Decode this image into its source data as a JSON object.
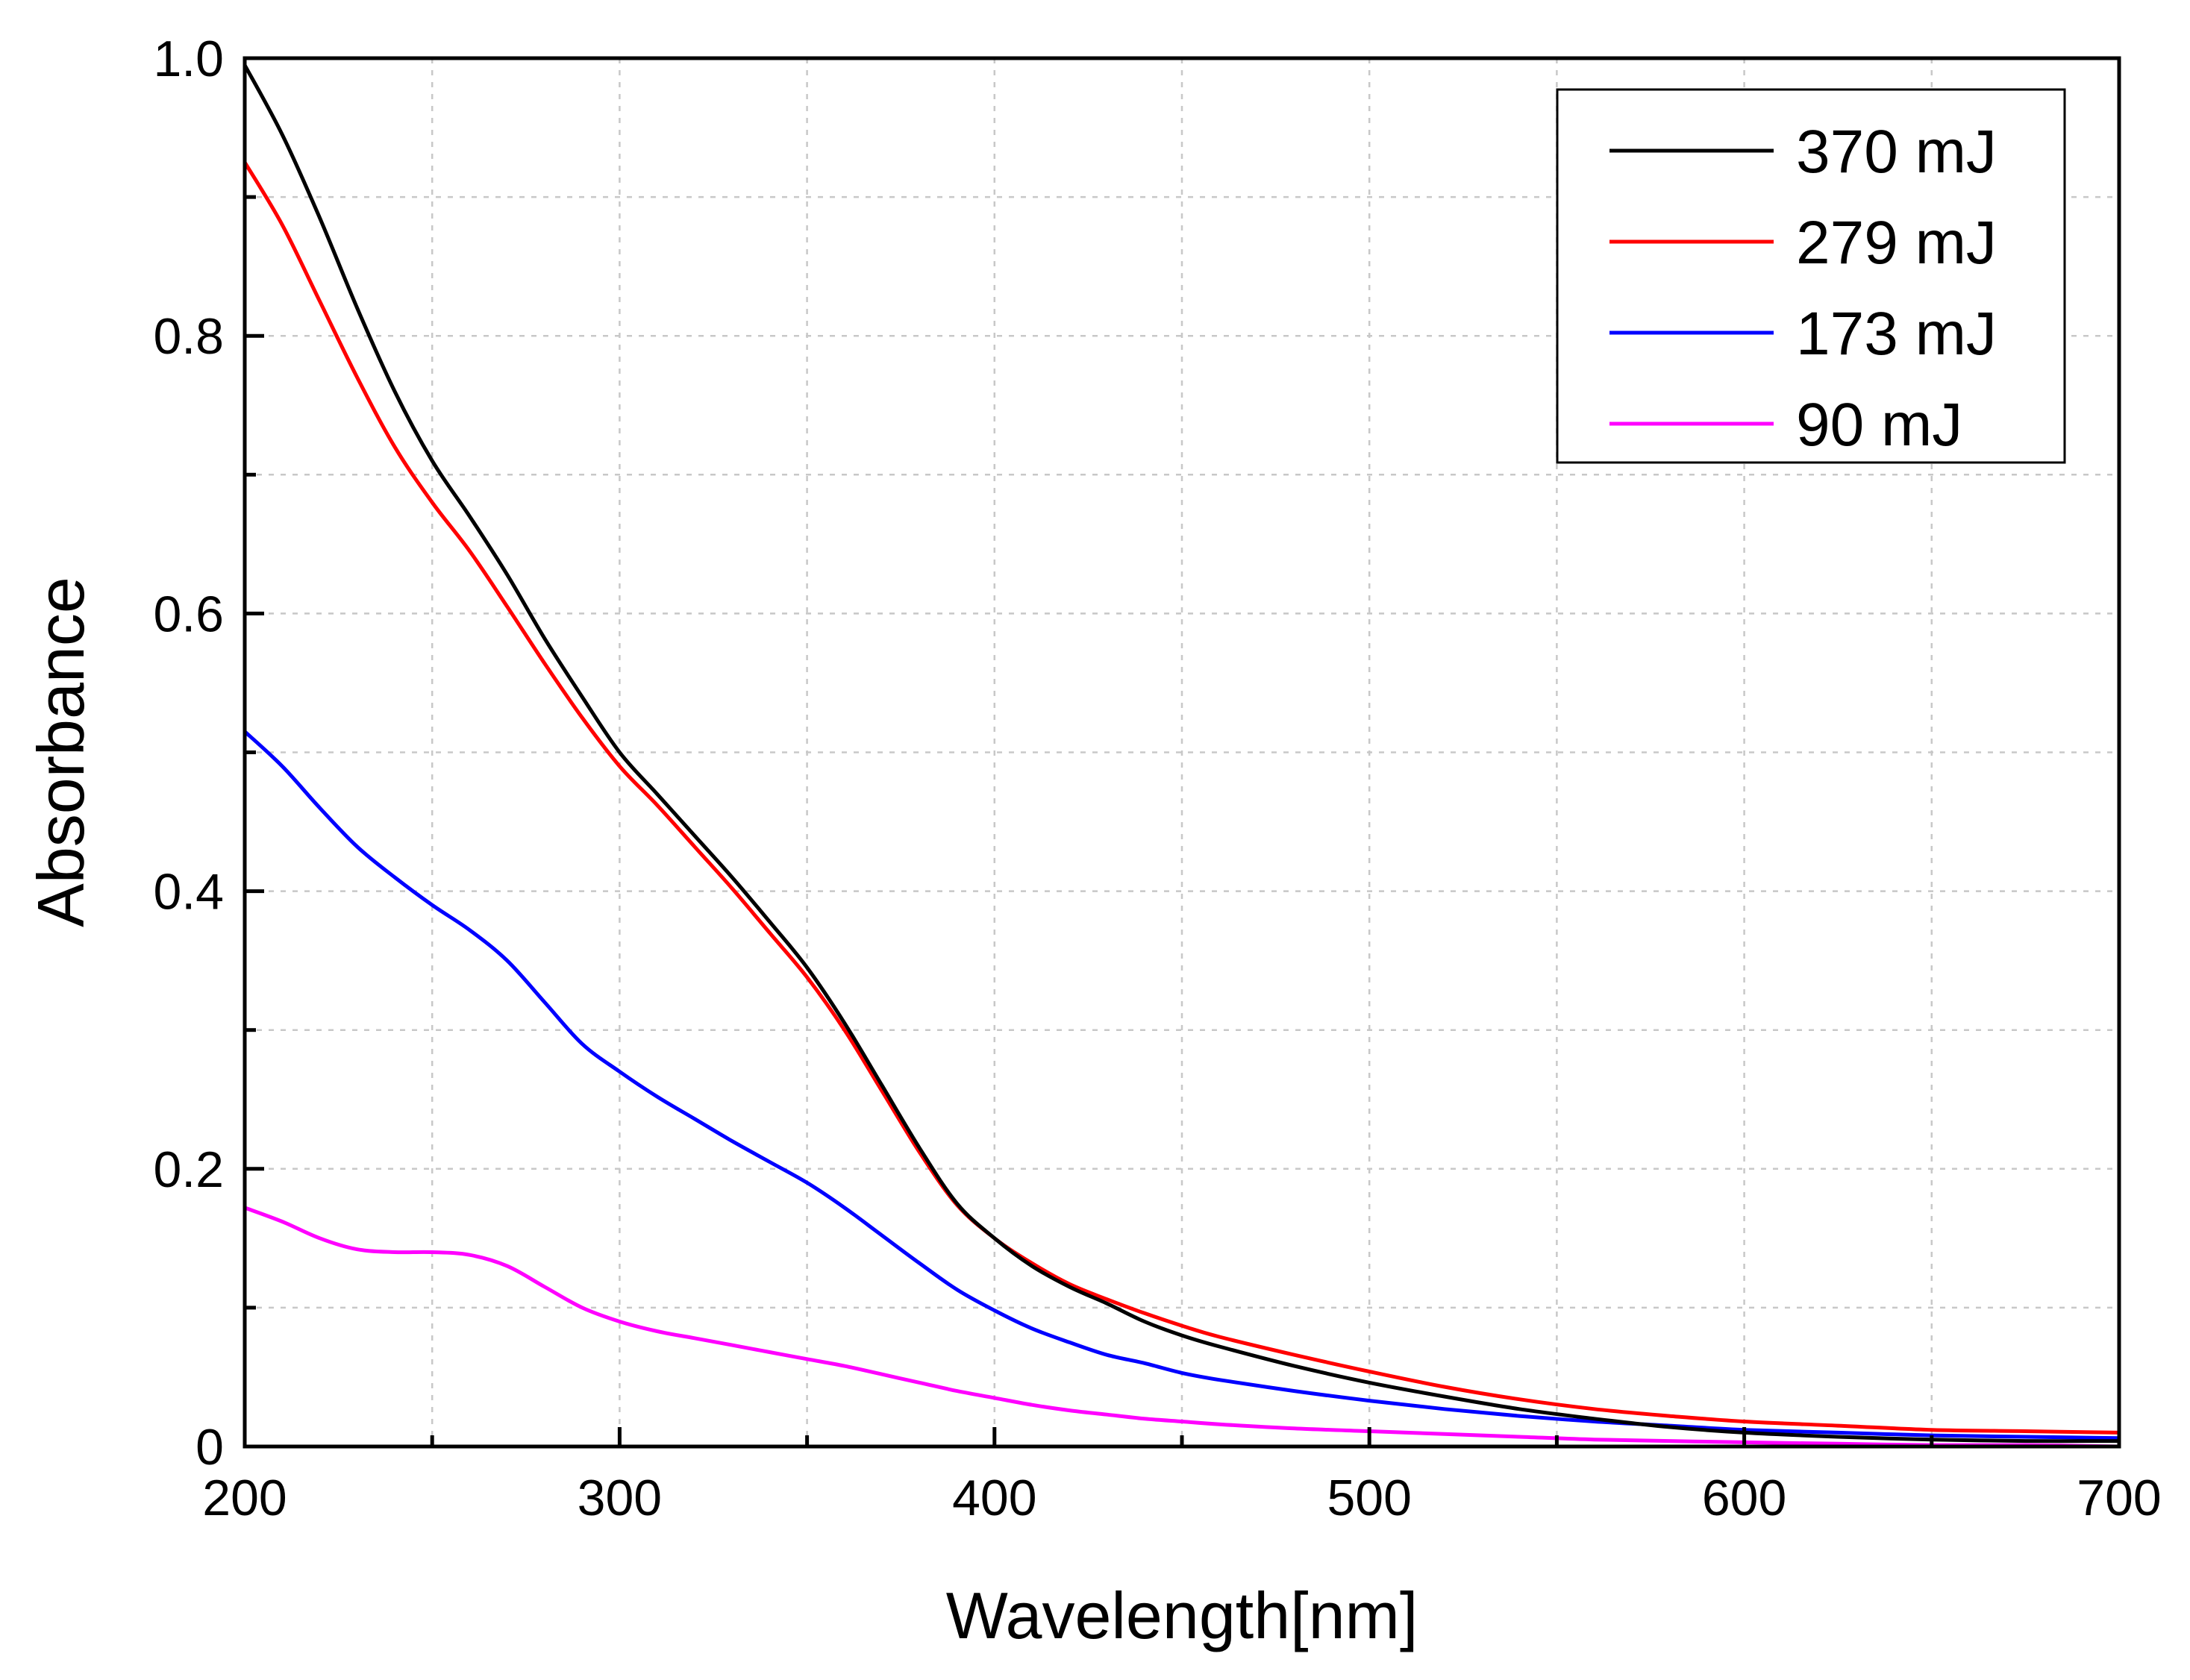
{
  "chart_data": {
    "type": "line",
    "title": "",
    "xlabel": "Wavelength[nm]",
    "ylabel": "Absorbance",
    "xlim": [
      200,
      700
    ],
    "ylim": [
      0,
      1.0
    ],
    "x_ticks": [
      200,
      300,
      400,
      500,
      600,
      700
    ],
    "x_tick_labels": [
      "200",
      "300",
      "400",
      "500",
      "600",
      "700"
    ],
    "x_minor_ticks": [
      250,
      350,
      450,
      550,
      650
    ],
    "y_ticks": [
      0,
      0.2,
      0.4,
      0.6,
      0.8,
      1.0
    ],
    "y_tick_labels": [
      "0",
      "0.2",
      "0.4",
      "0.6",
      "0.8",
      "1.0"
    ],
    "y_minor_ticks": [
      0.1,
      0.3,
      0.5,
      0.7,
      0.9
    ],
    "grid": true,
    "legend_position": "top-right",
    "series": [
      {
        "name": "370 mJ",
        "color": "#000000",
        "x": [
          200,
          210,
          220,
          230,
          240,
          250,
          260,
          270,
          280,
          290,
          300,
          310,
          320,
          330,
          340,
          350,
          360,
          370,
          380,
          390,
          400,
          410,
          420,
          430,
          440,
          450,
          460,
          480,
          500,
          520,
          540,
          560,
          580,
          600,
          625,
          650,
          675,
          700
        ],
        "y": [
          0.995,
          0.945,
          0.885,
          0.82,
          0.76,
          0.71,
          0.67,
          0.628,
          0.582,
          0.54,
          0.5,
          0.47,
          0.44,
          0.41,
          0.378,
          0.345,
          0.305,
          0.26,
          0.215,
          0.175,
          0.15,
          0.13,
          0.115,
          0.103,
          0.09,
          0.08,
          0.072,
          0.058,
          0.046,
          0.036,
          0.027,
          0.02,
          0.014,
          0.01,
          0.007,
          0.005,
          0.004,
          0.004
        ]
      },
      {
        "name": "279 mJ",
        "color": "#ff0000",
        "x": [
          200,
          210,
          220,
          230,
          240,
          250,
          260,
          270,
          280,
          290,
          300,
          310,
          320,
          330,
          340,
          350,
          360,
          370,
          380,
          390,
          400,
          410,
          420,
          430,
          440,
          450,
          460,
          480,
          500,
          520,
          540,
          560,
          580,
          600,
          625,
          650,
          675,
          700
        ],
        "y": [
          0.925,
          0.88,
          0.825,
          0.77,
          0.72,
          0.68,
          0.645,
          0.605,
          0.564,
          0.525,
          0.49,
          0.462,
          0.432,
          0.402,
          0.37,
          0.338,
          0.3,
          0.256,
          0.212,
          0.174,
          0.15,
          0.132,
          0.117,
          0.106,
          0.096,
          0.087,
          0.079,
          0.066,
          0.054,
          0.043,
          0.034,
          0.027,
          0.022,
          0.018,
          0.015,
          0.012,
          0.011,
          0.01
        ]
      },
      {
        "name": "173 mJ",
        "color": "#0000ff",
        "x": [
          200,
          210,
          220,
          230,
          240,
          250,
          260,
          270,
          280,
          290,
          300,
          310,
          320,
          330,
          340,
          350,
          360,
          370,
          380,
          390,
          400,
          410,
          420,
          430,
          440,
          450,
          460,
          480,
          500,
          520,
          540,
          560,
          580,
          600,
          625,
          650,
          675,
          700
        ],
        "y": [
          0.515,
          0.49,
          0.46,
          0.432,
          0.41,
          0.39,
          0.372,
          0.35,
          0.32,
          0.29,
          0.27,
          0.252,
          0.236,
          0.22,
          0.205,
          0.19,
          0.172,
          0.152,
          0.132,
          0.113,
          0.098,
          0.085,
          0.075,
          0.066,
          0.06,
          0.053,
          0.048,
          0.04,
          0.033,
          0.027,
          0.022,
          0.018,
          0.015,
          0.012,
          0.01,
          0.008,
          0.007,
          0.006
        ]
      },
      {
        "name": "90 mJ",
        "color": "#ff00ff",
        "x": [
          200,
          210,
          220,
          230,
          240,
          250,
          260,
          270,
          280,
          290,
          300,
          310,
          320,
          330,
          340,
          350,
          360,
          370,
          380,
          390,
          400,
          410,
          420,
          430,
          440,
          450,
          460,
          480,
          500,
          520,
          540,
          560,
          580,
          600,
          625,
          650,
          675,
          700
        ],
        "y": [
          0.172,
          0.162,
          0.15,
          0.142,
          0.14,
          0.14,
          0.138,
          0.13,
          0.115,
          0.1,
          0.09,
          0.083,
          0.078,
          0.073,
          0.068,
          0.063,
          0.058,
          0.052,
          0.046,
          0.04,
          0.035,
          0.03,
          0.026,
          0.023,
          0.02,
          0.018,
          0.016,
          0.013,
          0.011,
          0.009,
          0.007,
          0.005,
          0.004,
          0.003,
          0.002,
          0.001,
          0.001,
          0.0
        ]
      }
    ]
  }
}
